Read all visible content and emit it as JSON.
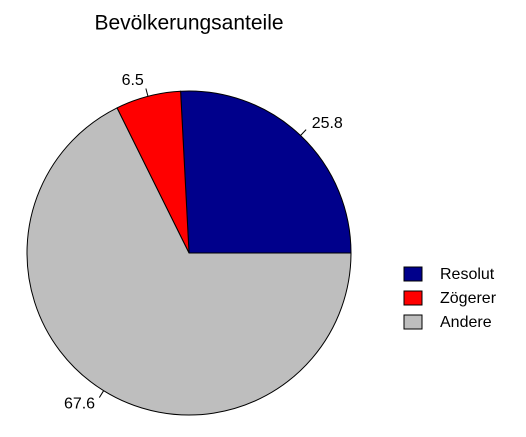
{
  "chart_data": {
    "type": "pie",
    "title": "Bevölkerungsanteile",
    "categories": [
      "Resolut",
      "Zögerer",
      "Andere"
    ],
    "values": [
      25.8,
      6.5,
      67.6
    ],
    "colors": [
      "#00008b",
      "#ff0000",
      "#bebebe"
    ],
    "legend": "right"
  }
}
